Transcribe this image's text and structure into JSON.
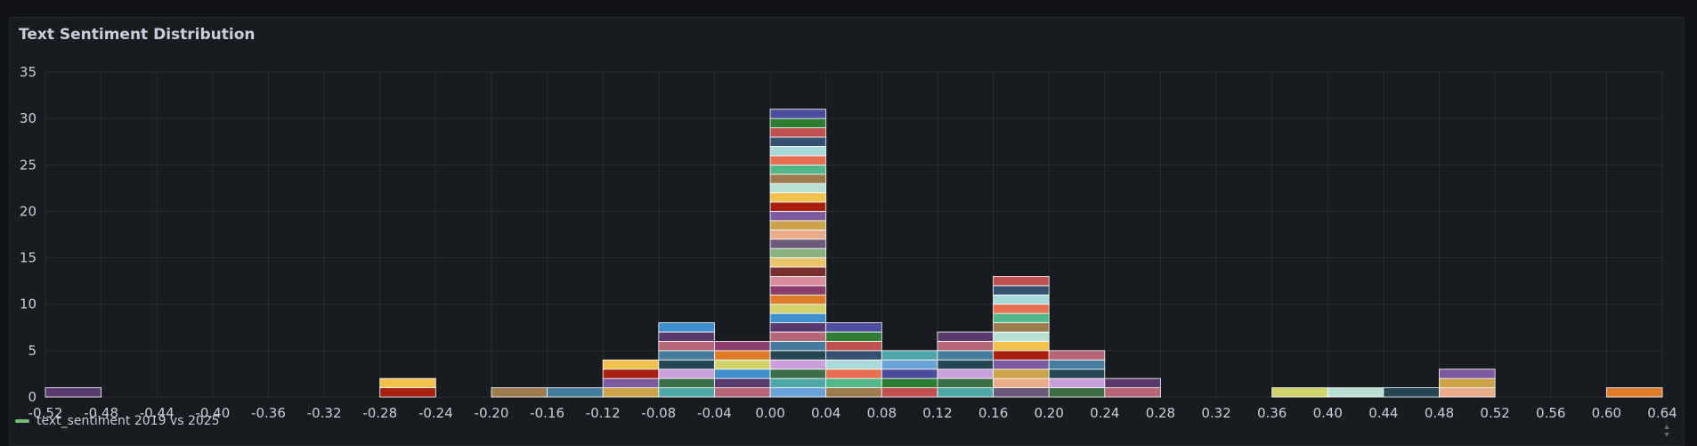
{
  "panel": {
    "title": "Text Sentiment Distribution"
  },
  "legend": {
    "label": "text_sentiment 2019 vs 2025",
    "color": "#73bf69"
  },
  "colors": {
    "background": "#111217",
    "panel": "#181b1f",
    "grid": "#2b2e35",
    "axis_text": "#ccccdc",
    "bar_border": "#ffffff",
    "palette": [
      "#5a3a6e",
      "#c05050",
      "#cda34a",
      "#3e8fcf",
      "#2e7d32",
      "#7b5aa0",
      "#d2d26a",
      "#4d4d9f",
      "#a82010",
      "#e07b28",
      "#6ba3d9",
      "#f2c14e",
      "#8c3c68",
      "#4fa8a8",
      "#b8e0d2",
      "#d88c9a",
      "#3c6e47",
      "#9e7b4f",
      "#7a2e2e",
      "#c9a0dc",
      "#52b788",
      "#e9c46a",
      "#264653",
      "#e76f51",
      "#8ab17d",
      "#457b9d",
      "#a8dadc",
      "#6d597a",
      "#b56576",
      "#355070",
      "#eaac8b"
    ]
  },
  "chart_data": {
    "type": "bar",
    "title": "Text Sentiment Distribution",
    "bucket_size": 0.04,
    "x_ticks": [
      "-0.52",
      "-0.48",
      "-0.44",
      "-0.40",
      "-0.36",
      "-0.32",
      "-0.28",
      "-0.24",
      "-0.20",
      "-0.16",
      "-0.12",
      "-0.08",
      "-0.04",
      "0.00",
      "0.04",
      "0.08",
      "0.12",
      "0.16",
      "0.20",
      "0.24",
      "0.28",
      "0.32",
      "0.36",
      "0.40",
      "0.44",
      "0.48",
      "0.52",
      "0.56",
      "0.60",
      "0.64"
    ],
    "y_ticks": [
      "0",
      "5",
      "10",
      "15",
      "20",
      "25",
      "30",
      "35"
    ],
    "xlim": [
      -0.52,
      0.64
    ],
    "ylim": [
      0,
      35
    ],
    "grid": true,
    "legend_position": "bottom-left",
    "series": [
      {
        "name": "text_sentiment 2019 vs 2025"
      }
    ],
    "buckets": [
      {
        "start": -0.52,
        "count": 1
      },
      {
        "start": -0.28,
        "count": 2
      },
      {
        "start": -0.2,
        "count": 1
      },
      {
        "start": -0.16,
        "count": 1
      },
      {
        "start": -0.12,
        "count": 4
      },
      {
        "start": -0.08,
        "count": 8
      },
      {
        "start": -0.04,
        "count": 6
      },
      {
        "start": 0.0,
        "count": 31
      },
      {
        "start": 0.04,
        "count": 8
      },
      {
        "start": 0.08,
        "count": 5
      },
      {
        "start": 0.12,
        "count": 7
      },
      {
        "start": 0.16,
        "count": 13
      },
      {
        "start": 0.2,
        "count": 5
      },
      {
        "start": 0.24,
        "count": 2
      },
      {
        "start": 0.36,
        "count": 1
      },
      {
        "start": 0.4,
        "count": 1
      },
      {
        "start": 0.44,
        "count": 1
      },
      {
        "start": 0.48,
        "count": 3
      },
      {
        "start": 0.6,
        "count": 1
      }
    ]
  }
}
